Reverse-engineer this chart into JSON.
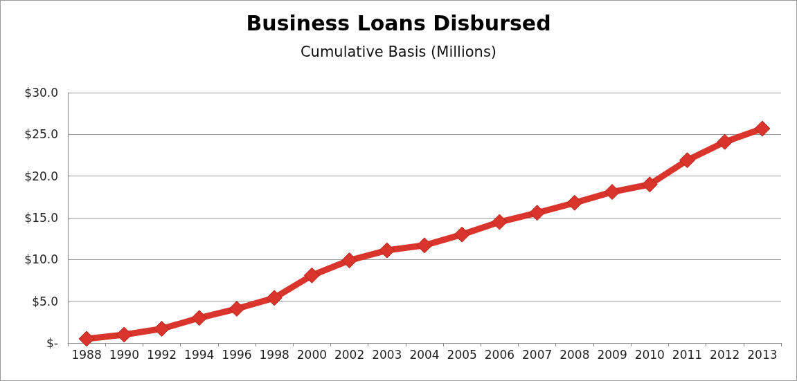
{
  "chart_data": {
    "type": "line",
    "title": "Business Loans Disbursed",
    "subtitle": "Cumulative Basis (Millions)",
    "categories": [
      "1988",
      "1990",
      "1992",
      "1994",
      "1996",
      "1998",
      "2000",
      "2002",
      "2003",
      "2004",
      "2005",
      "2006",
      "2007",
      "2008",
      "2009",
      "2010",
      "2011",
      "2012",
      "2013"
    ],
    "series": [
      {
        "color": "#d9352c",
        "values": [
          0.5,
          1.0,
          1.7,
          3.0,
          4.1,
          5.4,
          8.1,
          9.9,
          11.1,
          11.7,
          13.0,
          14.5,
          15.6,
          16.8,
          18.1,
          19.0,
          21.9,
          24.1,
          25.7
        ]
      }
    ],
    "ylim": [
      0,
      30
    ],
    "yticks": [
      {
        "value": 0,
        "label": "$-"
      },
      {
        "value": 5,
        "label": "$5.0"
      },
      {
        "value": 10,
        "label": "$10.0"
      },
      {
        "value": 15,
        "label": "$15.0"
      },
      {
        "value": 20,
        "label": "$20.0"
      },
      {
        "value": 25,
        "label": "$25.0"
      },
      {
        "value": 30,
        "label": "$30.0"
      }
    ],
    "grid": "y",
    "marker": "diamond",
    "line_style": "solid"
  }
}
